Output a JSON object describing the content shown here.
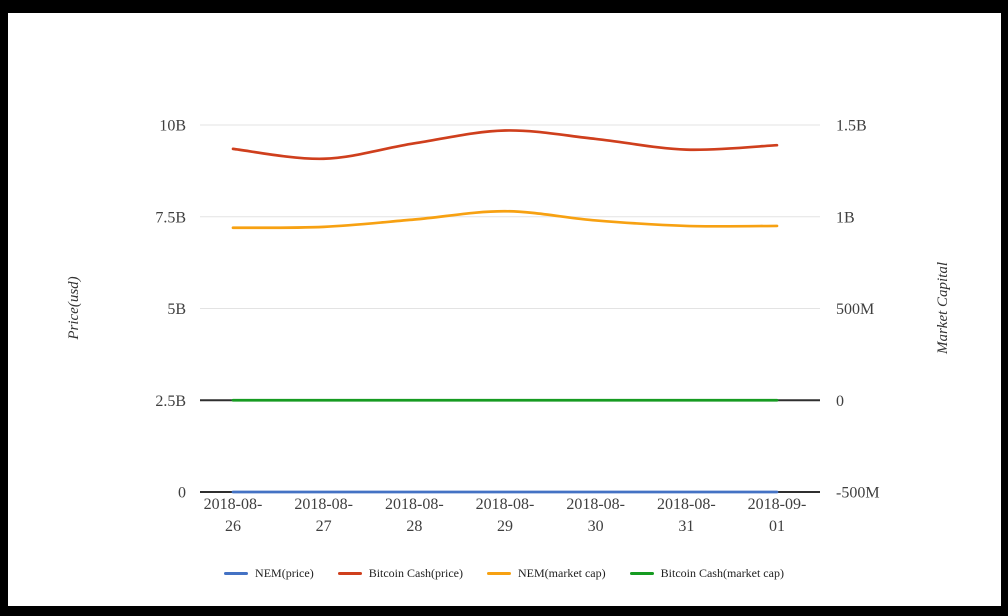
{
  "page": {
    "frame_color": "#000000",
    "canvas_color": "#ffffff"
  },
  "chart_data": {
    "type": "line",
    "x": [
      "2018-08-26",
      "2018-08-27",
      "2018-08-28",
      "2018-08-29",
      "2018-08-30",
      "2018-08-31",
      "2018-09-01"
    ],
    "axes": {
      "left": {
        "title": "Price(usd)",
        "range_billions": [
          0,
          10
        ],
        "ticks": [
          {
            "label": "0",
            "value": 0,
            "dark": true
          },
          {
            "label": "2.5B",
            "value": 2.5,
            "dark": true
          },
          {
            "label": "5B",
            "value": 5,
            "dark": false
          },
          {
            "label": "7.5B",
            "value": 7.5,
            "dark": false
          },
          {
            "label": "10B",
            "value": 10,
            "dark": false
          }
        ]
      },
      "right": {
        "title": "Market Capital",
        "range_billions": [
          -0.5,
          1.5
        ],
        "ticks": [
          {
            "label": "-500M",
            "value": -0.5
          },
          {
            "label": "0",
            "value": 0
          },
          {
            "label": "500M",
            "value": 0.5
          },
          {
            "label": "1B",
            "value": 1
          },
          {
            "label": "1.5B",
            "value": 1.5
          }
        ]
      }
    },
    "grid": {
      "light_color": "#e3e3e3",
      "dark_color": "#2f2f2f",
      "grid_on": true
    },
    "series": [
      {
        "name": "NEM(price)",
        "color": "#4472c4",
        "axis": "left",
        "values_billions": [
          0,
          0,
          0,
          0,
          0,
          0,
          0
        ]
      },
      {
        "name": "Bitcoin Cash(price)",
        "color": "#cf3f1d",
        "axis": "left",
        "values_billions": [
          9.35,
          9.08,
          9.5,
          9.85,
          9.62,
          9.33,
          9.45
        ]
      },
      {
        "name": "NEM(market cap)",
        "color": "#f7a112",
        "axis": "right",
        "values_billions": [
          0.94,
          0.945,
          0.985,
          1.03,
          0.98,
          0.95,
          0.95
        ]
      },
      {
        "name": "Bitcoin Cash(market cap)",
        "color": "#169b21",
        "axis": "right",
        "values_billions": [
          0,
          0,
          0,
          0,
          0,
          0,
          0
        ]
      }
    ],
    "legend_position": "bottom"
  }
}
